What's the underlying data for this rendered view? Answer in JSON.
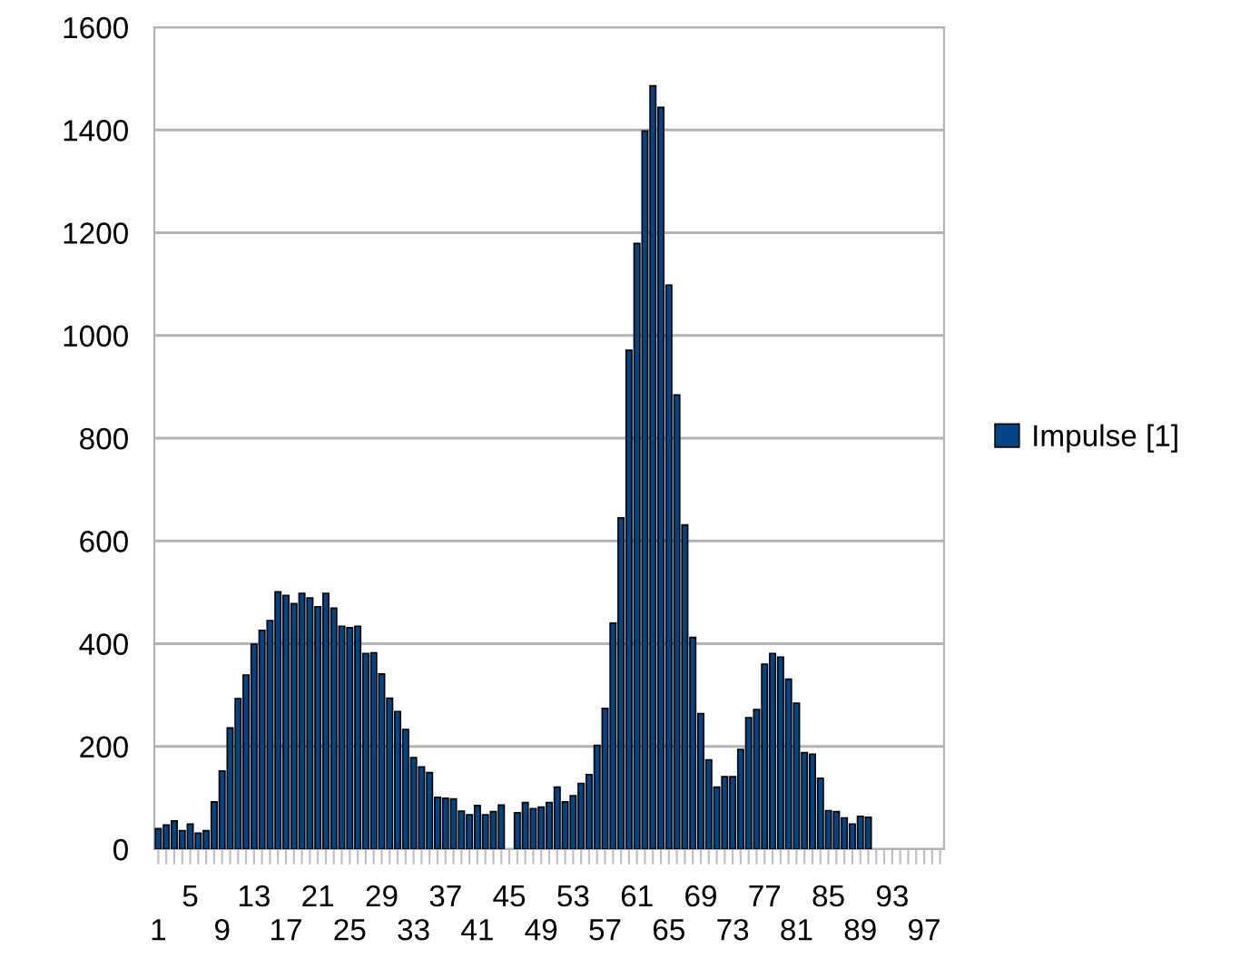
{
  "chart_data": {
    "type": "bar",
    "categories": [
      "1",
      null,
      null,
      null,
      "5",
      null,
      null,
      null,
      "9",
      null,
      null,
      null,
      "13",
      null,
      null,
      null,
      "17",
      null,
      null,
      null,
      "21",
      null,
      null,
      null,
      "25",
      null,
      null,
      null,
      "29",
      null,
      null,
      null,
      "33",
      null,
      null,
      null,
      "37",
      null,
      null,
      null,
      "41",
      null,
      null,
      null,
      "45",
      null,
      null,
      null,
      "49",
      null,
      null,
      null,
      "53",
      null,
      null,
      null,
      "57",
      null,
      null,
      null,
      "61",
      null,
      null,
      null,
      "65",
      null,
      null,
      null,
      "69",
      null,
      null,
      null,
      "73",
      null,
      null,
      null,
      "77",
      null,
      null,
      null,
      "81",
      null,
      null,
      null,
      "85",
      null,
      null,
      null,
      "89",
      null,
      null,
      null,
      "93",
      null,
      null,
      null,
      "97",
      null,
      null
    ],
    "series": [
      {
        "name": "Impulse [1]",
        "color": "#004586",
        "values": [
          40,
          47,
          55,
          36,
          49,
          31,
          36,
          92,
          152,
          236,
          293,
          339,
          399,
          426,
          445,
          501,
          494,
          478,
          498,
          489,
          472,
          498,
          469,
          434,
          431,
          434,
          381,
          382,
          341,
          294,
          268,
          233,
          178,
          160,
          149,
          101,
          99,
          98,
          74,
          67,
          85,
          67,
          73,
          86,
          null,
          71,
          91,
          79,
          82,
          91,
          121,
          92,
          104,
          128,
          145,
          202,
          274,
          440,
          645,
          971,
          1179,
          1398,
          1486,
          1444,
          1098,
          884,
          631,
          412,
          264,
          174,
          121,
          141,
          141,
          194,
          256,
          272,
          360,
          381,
          374,
          331,
          284,
          188,
          185,
          138,
          75,
          73,
          61,
          49,
          64,
          62,
          null,
          null,
          null,
          null,
          null,
          null,
          null,
          null,
          null
        ]
      }
    ],
    "ylim": [
      0,
      1600
    ],
    "yticks": [
      0,
      200,
      400,
      600,
      800,
      1000,
      1200,
      1400,
      1600
    ],
    "grid": "y",
    "legend": "right"
  }
}
